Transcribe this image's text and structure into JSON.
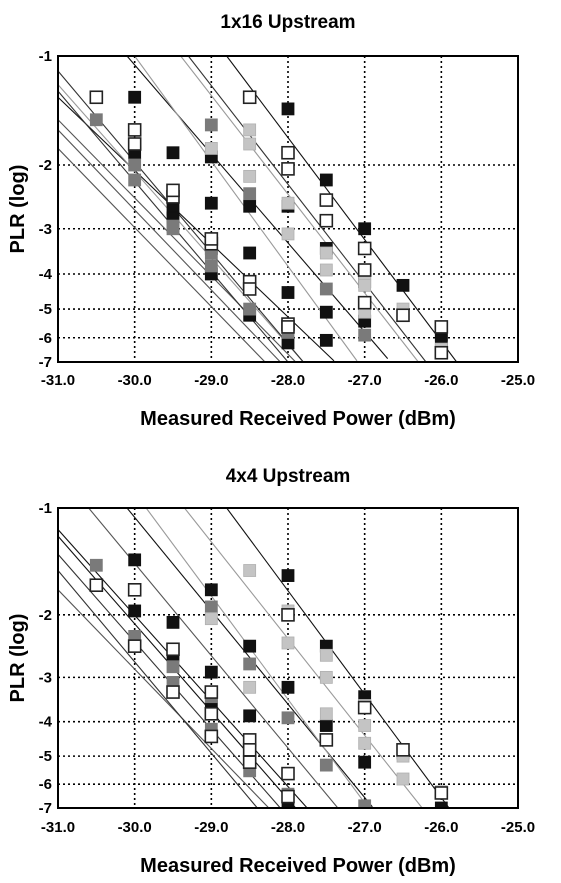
{
  "chart_data": [
    {
      "type": "scatter",
      "title": "1x16 Upstream",
      "xlabel": "Measured Received Power (dBm)",
      "ylabel": "PLR (log)",
      "xlim": [
        -31.0,
        -25.0
      ],
      "ylim": [
        -7,
        -1
      ],
      "y_scale": "log-exponent",
      "x_ticks": [
        "-31.0",
        "-30.0",
        "-29.0",
        "-28.0",
        "-27.0",
        "-26.0",
        "-25.0"
      ],
      "y_ticks": [
        "-1",
        "-2",
        "-3",
        "-4",
        "-5",
        "-6",
        "-7"
      ],
      "grid": true,
      "colors": {
        "black": "#111111",
        "dark_gray": "#7a7a7a",
        "light_gray": "#c4c4c4",
        "open": "#ffffff"
      },
      "series": [
        {
          "style": "black",
          "points": [
            [
              -30.0,
              -1.3
            ],
            [
              -29.5,
              -1.85
            ],
            [
              -29.0,
              -1.9
            ],
            [
              -28.5,
              -2.6
            ],
            [
              -28.0,
              -2.6
            ],
            [
              -27.5,
              -3.4
            ],
            [
              -27.0,
              -4.2
            ],
            [
              -26.5,
              -4.3
            ],
            [
              -26.0,
              -5.9
            ],
            [
              -30.0,
              -1.85
            ],
            [
              -29.5,
              -2.65
            ],
            [
              -29.0,
              -3.4
            ],
            [
              -28.5,
              -3.5
            ],
            [
              -28.0,
              -4.5
            ],
            [
              -27.5,
              -5.1
            ],
            [
              -27.0,
              -5.4
            ],
            [
              -29.0,
              -2.55
            ],
            [
              -28.0,
              -6.2
            ],
            [
              -27.5,
              -6.1
            ],
            [
              -28.0,
              -1.4
            ],
            [
              -27.5,
              -2.2
            ],
            [
              -27.0,
              -3.0
            ],
            [
              -26.0,
              -6.1
            ],
            [
              -28.5,
              -5.2
            ],
            [
              -29.5,
              -2.8
            ],
            [
              -29.0,
              -4.0
            ]
          ],
          "lines": [
            [
              -31.0,
              -1.3,
              -27.4,
              -6.95
            ],
            [
              -30.1,
              -1.0,
              -26.7,
              -6.85
            ],
            [
              -28.8,
              -1.0,
              -25.8,
              -7.0
            ]
          ]
        },
        {
          "style": "dark_gray",
          "points": [
            [
              -30.5,
              -1.5
            ],
            [
              -30.0,
              -2.2
            ],
            [
              -29.5,
              -2.95
            ],
            [
              -29.0,
              -1.55
            ],
            [
              -29.0,
              -3.8
            ],
            [
              -28.5,
              -2.4
            ],
            [
              -28.5,
              -5.0
            ],
            [
              -28.0,
              -5.8
            ],
            [
              -27.5,
              -4.4
            ],
            [
              -27.0,
              -5.9
            ],
            [
              -30.0,
              -2.0
            ],
            [
              -29.5,
              -3.0
            ],
            [
              -29.0,
              -3.5
            ]
          ],
          "lines": [
            [
              -31.0,
              -1.6,
              -28.1,
              -7.0
            ],
            [
              -31.0,
              -1.8,
              -28.3,
              -7.0
            ],
            [
              -31.0,
              -1.5,
              -27.9,
              -7.0
            ]
          ]
        },
        {
          "style": "light_gray",
          "points": [
            [
              -29.0,
              -1.8
            ],
            [
              -28.5,
              -1.6
            ],
            [
              -28.5,
              -2.15
            ],
            [
              -28.0,
              -2.55
            ],
            [
              -27.5,
              -2.5
            ],
            [
              -27.5,
              -3.9
            ],
            [
              -27.0,
              -4.0
            ],
            [
              -27.0,
              -4.3
            ],
            [
              -26.5,
              -5.0
            ],
            [
              -26.0,
              -6.45
            ],
            [
              -28.5,
              -1.75
            ],
            [
              -28.0,
              -3.1
            ],
            [
              -27.5,
              -3.5
            ],
            [
              -27.0,
              -5.1
            ],
            [
              -29.5,
              -2.45
            ],
            [
              -29.0,
              -3.3
            ]
          ],
          "lines": [
            [
              -30.0,
              -1.0,
              -27.1,
              -6.95
            ],
            [
              -29.4,
              -1.0,
              -26.3,
              -7.0
            ],
            [
              -31.0,
              -1.2,
              -27.8,
              -7.0
            ]
          ]
        },
        {
          "style": "open",
          "points": [
            [
              -30.5,
              -1.3
            ],
            [
              -30.0,
              -1.6
            ],
            [
              -30.0,
              -1.75
            ],
            [
              -29.5,
              -2.45
            ],
            [
              -29.0,
              -3.3
            ],
            [
              -28.5,
              -4.2
            ],
            [
              -28.5,
              -4.4
            ],
            [
              -28.0,
              -5.5
            ],
            [
              -28.0,
              -5.6
            ],
            [
              -28.5,
              -1.3
            ],
            [
              -28.0,
              -1.85
            ],
            [
              -28.0,
              -2.05
            ],
            [
              -27.5,
              -2.5
            ],
            [
              -27.5,
              -2.85
            ],
            [
              -27.0,
              -3.4
            ],
            [
              -27.0,
              -3.9
            ],
            [
              -27.0,
              -4.8
            ],
            [
              -26.5,
              -5.2
            ],
            [
              -26.0,
              -5.6
            ],
            [
              -26.0,
              -6.6
            ],
            [
              -29.5,
              -2.35
            ],
            [
              -29.0,
              -3.2
            ]
          ],
          "lines": [
            [
              -31.0,
              -1.1,
              -27.8,
              -7.0
            ],
            [
              -31.0,
              -1.25,
              -28.0,
              -7.0
            ],
            [
              -29.3,
              -1.0,
              -26.2,
              -7.0
            ]
          ]
        }
      ]
    },
    {
      "type": "scatter",
      "title": "4x4 Upstream",
      "xlabel": "Measured Received Power (dBm)",
      "ylabel": "PLR (log)",
      "xlim": [
        -31.0,
        -25.0
      ],
      "ylim": [
        -7,
        -1
      ],
      "y_scale": "log-exponent",
      "x_ticks": [
        "-31.0",
        "-30.0",
        "-29.0",
        "-28.0",
        "-27.0",
        "-26.0",
        "-25.0"
      ],
      "y_ticks": [
        "-1",
        "-2",
        "-3",
        "-4",
        "-5",
        "-6",
        "-7"
      ],
      "grid": true,
      "colors": {
        "black": "#111111",
        "dark_gray": "#7a7a7a",
        "light_gray": "#c4c4c4",
        "open": "#ffffff"
      },
      "series": [
        {
          "style": "black",
          "points": [
            [
              -30.0,
              -1.4
            ],
            [
              -29.5,
              -2.1
            ],
            [
              -29.0,
              -1.7
            ],
            [
              -29.0,
              -2.9
            ],
            [
              -28.5,
              -2.45
            ],
            [
              -28.5,
              -3.85
            ],
            [
              -28.0,
              -1.55
            ],
            [
              -28.0,
              -3.2
            ],
            [
              -28.0,
              -6.7
            ],
            [
              -27.5,
              -2.45
            ],
            [
              -27.5,
              -4.1
            ],
            [
              -27.0,
              -3.4
            ],
            [
              -27.0,
              -5.2
            ],
            [
              -26.5,
              -4.9
            ],
            [
              -26.0,
              -7.0
            ],
            [
              -30.0,
              -1.95
            ],
            [
              -29.0,
              -3.6
            ],
            [
              -28.5,
              -5.0
            ],
            [
              -29.5,
              -2.6
            ]
          ],
          "lines": [
            [
              -31.0,
              -1.2,
              -27.9,
              -7.0
            ],
            [
              -30.1,
              -1.0,
              -26.9,
              -6.95
            ],
            [
              -28.8,
              -1.0,
              -25.9,
              -7.0
            ],
            [
              -31.0,
              -1.15,
              -27.75,
              -7.0
            ]
          ]
        },
        {
          "style": "dark_gray",
          "points": [
            [
              -30.5,
              -1.45
            ],
            [
              -30.0,
              -2.3
            ],
            [
              -29.5,
              -3.1
            ],
            [
              -29.0,
              -1.9
            ],
            [
              -29.0,
              -3.4
            ],
            [
              -28.5,
              -2.75
            ],
            [
              -28.5,
              -5.5
            ],
            [
              -28.0,
              -3.9
            ],
            [
              -28.0,
              -6.4
            ],
            [
              -27.5,
              -5.3
            ],
            [
              -27.0,
              -6.9
            ],
            [
              -29.5,
              -2.8
            ],
            [
              -29.0,
              -4.2
            ]
          ],
          "lines": [
            [
              -31.0,
              -1.7,
              -28.25,
              -7.0
            ],
            [
              -30.6,
              -1.0,
              -27.35,
              -7.0
            ]
          ]
        },
        {
          "style": "light_gray",
          "points": [
            [
              -29.0,
              -2.05
            ],
            [
              -28.5,
              -1.5
            ],
            [
              -28.0,
              -2.4
            ],
            [
              -28.0,
              -1.95
            ],
            [
              -27.5,
              -2.6
            ],
            [
              -27.5,
              -3.0
            ],
            [
              -27.0,
              -4.1
            ],
            [
              -27.0,
              -4.6
            ],
            [
              -26.5,
              -5.8
            ],
            [
              -26.0,
              -6.3
            ],
            [
              -28.5,
              -3.2
            ],
            [
              -27.5,
              -3.8
            ],
            [
              -27.0,
              -3.6
            ],
            [
              -26.5,
              -5.0
            ]
          ],
          "lines": [
            [
              -29.85,
              -1.0,
              -26.95,
              -7.0
            ],
            [
              -29.35,
              -1.0,
              -26.25,
              -7.0
            ]
          ]
        },
        {
          "style": "open",
          "points": [
            [
              -30.5,
              -1.65
            ],
            [
              -30.0,
              -1.7
            ],
            [
              -30.0,
              -2.45
            ],
            [
              -29.5,
              -2.5
            ],
            [
              -29.5,
              -3.3
            ],
            [
              -29.0,
              -3.3
            ],
            [
              -29.0,
              -4.4
            ],
            [
              -28.5,
              -4.5
            ],
            [
              -28.5,
              -4.8
            ],
            [
              -28.0,
              -2.0
            ],
            [
              -28.0,
              -5.6
            ],
            [
              -28.0,
              -6.5
            ],
            [
              -27.5,
              -4.5
            ],
            [
              -27.0,
              -3.65
            ],
            [
              -26.5,
              -4.8
            ],
            [
              -26.0,
              -6.35
            ],
            [
              -29.0,
              -3.8
            ],
            [
              -28.5,
              -5.2
            ]
          ],
          "lines": [
            [
              -31.0,
              -1.5,
              -28.4,
              -7.0
            ],
            [
              -31.0,
              -1.35,
              -28.1,
              -7.0
            ]
          ]
        }
      ]
    }
  ]
}
